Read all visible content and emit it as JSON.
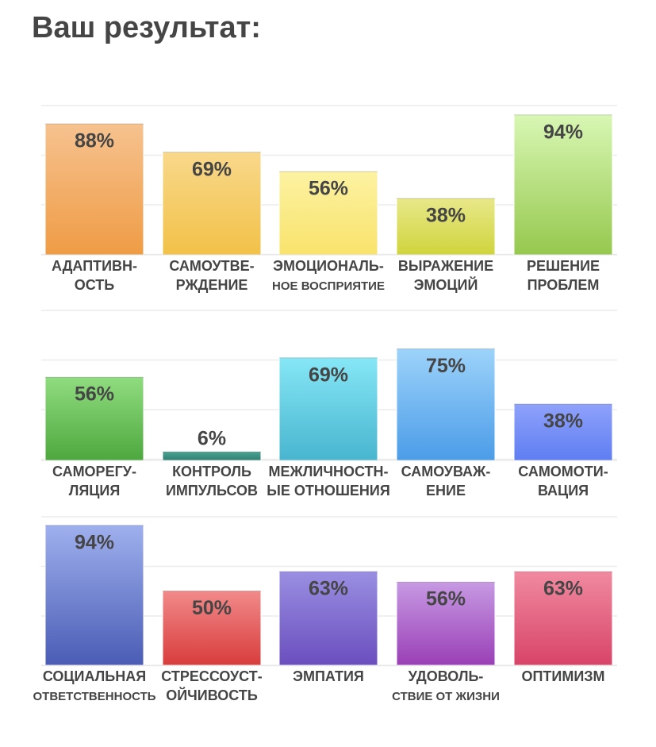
{
  "title": "Ваш результат:",
  "chart_data": [
    {
      "type": "bar",
      "categories": [
        [
          "АДАПТИВН-",
          "ОСТЬ"
        ],
        [
          "САМОУТВЕ-",
          "РЖДЕНИЕ"
        ],
        [
          "ЭМОЦИОНАЛЬ-",
          "НОЕ ВОСПРИЯТИЕ"
        ],
        [
          "ВЫРАЖЕНИЕ",
          "ЭМОЦИЙ"
        ],
        [
          "РЕШЕНИЕ",
          "ПРОБЛЕМ"
        ]
      ],
      "values": [
        88,
        69,
        56,
        38,
        94
      ],
      "data_labels": [
        "88%",
        "69%",
        "56%",
        "38%",
        "94%"
      ],
      "ylim": [
        0,
        100
      ],
      "grid": true,
      "colors": [
        [
          "#f6c28f",
          "#ef9c45"
        ],
        [
          "#f8d88b",
          "#f2c148"
        ],
        [
          "#fcf2a2",
          "#f9e36c"
        ],
        [
          "#e8e88a",
          "#cfd43c"
        ],
        [
          "#d8f7b4",
          "#96c84e"
        ]
      ]
    },
    {
      "type": "bar",
      "categories": [
        [
          "САМОРЕГУ-",
          "ЛЯЦИЯ"
        ],
        [
          "КОНТРОЛЬ",
          "ИМПУЛЬСОВ"
        ],
        [
          "МЕЖЛИЧНОСТН-",
          "ЫЕ ОТНОШЕНИЯ"
        ],
        [
          "САМОУВАЖ-",
          "ЕНИЕ"
        ],
        [
          "САМОМОТИ-",
          "ВАЦИЯ"
        ]
      ],
      "values": [
        56,
        6,
        69,
        75,
        38
      ],
      "data_labels": [
        "56%",
        "6%",
        "69%",
        "75%",
        "38%"
      ],
      "ylim": [
        0,
        100
      ],
      "grid": true,
      "colors": [
        [
          "#90dc80",
          "#4ea83e"
        ],
        [
          "#4ca394",
          "#2f7f72"
        ],
        [
          "#86e7f6",
          "#48b5cf"
        ],
        [
          "#9dd3fa",
          "#4b9ce8"
        ],
        [
          "#8fa2fb",
          "#5f7ef2"
        ]
      ]
    },
    {
      "type": "bar",
      "categories": [
        [
          "СОЦИАЛЬНАЯ",
          "ОТВЕТСТВЕННОСТЬ"
        ],
        [
          "СТРЕССОУСТ-",
          "ОЙЧИВОСТЬ"
        ],
        [
          "ЭМПАТИЯ"
        ],
        [
          "УДОВОЛЬ-",
          "СТВИЕ ОТ ЖИЗНИ"
        ],
        [
          "ОПТИМИЗМ"
        ]
      ],
      "values": [
        94,
        50,
        63,
        56,
        63
      ],
      "data_labels": [
        "94%",
        "50%",
        "63%",
        "56%",
        "63%"
      ],
      "ylim": [
        0,
        100
      ],
      "grid": true,
      "colors": [
        [
          "#9fb0ee",
          "#4a5cb4"
        ],
        [
          "#f28a8a",
          "#d83c3c"
        ],
        [
          "#9a8fe2",
          "#6a4ebe"
        ],
        [
          "#c79ae3",
          "#9a3fb6"
        ],
        [
          "#f08aa0",
          "#d84468"
        ]
      ]
    }
  ]
}
